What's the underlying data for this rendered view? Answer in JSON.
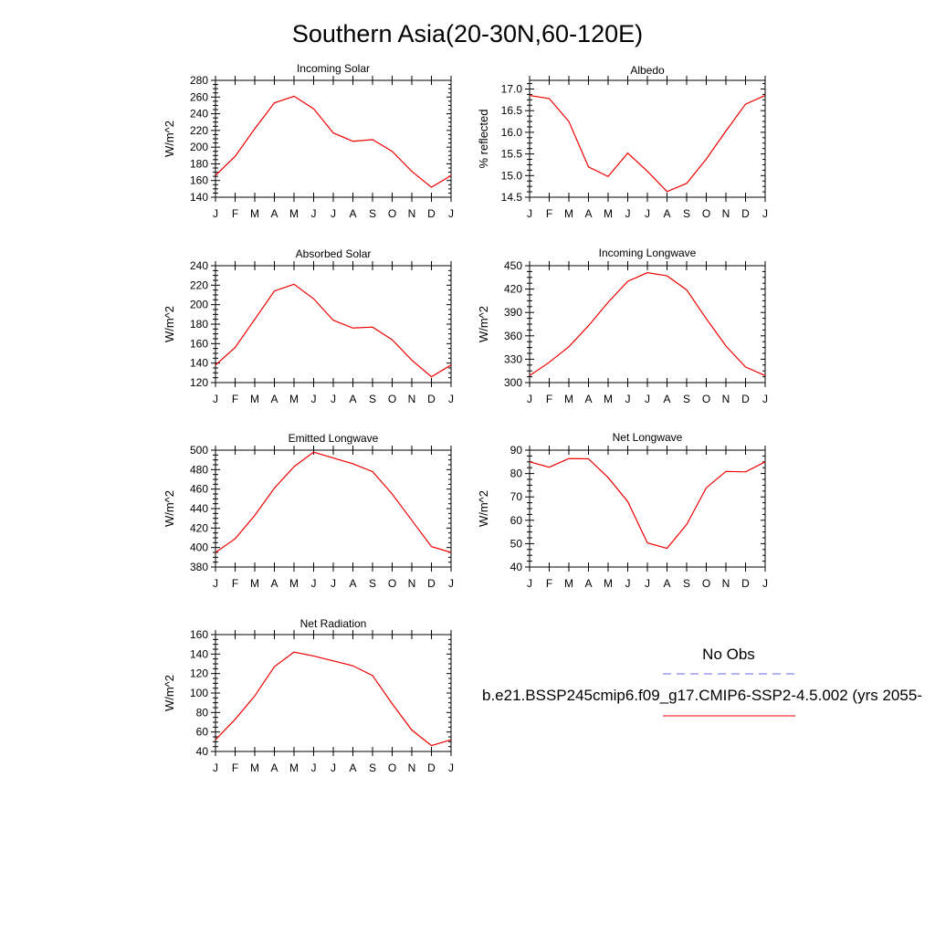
{
  "figure": {
    "title": "Southern Asia(20-30N,60-120E)"
  },
  "legend": {
    "obs_label": "No Obs",
    "obs_color": "#6a6aee",
    "model_label": "b.e21.BSSP245cmip6.f09_g17.CMIP6-SSP2-4.5.002 (yrs 2055-",
    "model_color": "#ee0000"
  },
  "chart_data": [
    {
      "type": "line",
      "title": "Incoming Solar",
      "ylabel": "W/m^2",
      "xlabel": "",
      "categories": [
        "J",
        "F",
        "M",
        "A",
        "M",
        "J",
        "J",
        "A",
        "S",
        "O",
        "N",
        "D",
        "J"
      ],
      "ylim": [
        140,
        280
      ],
      "yticks": [
        140,
        160,
        180,
        200,
        220,
        240,
        260,
        280
      ],
      "ytick_labels": [
        "140",
        "160",
        "180",
        "200",
        "220",
        "240",
        "260",
        "280"
      ],
      "series": [
        {
          "values": [
            166,
            189,
            222,
            253,
            261,
            246,
            217,
            207,
            209,
            195,
            171,
            152,
            166
          ]
        }
      ]
    },
    {
      "type": "line",
      "title": "Albedo",
      "ylabel": "% reflected",
      "xlabel": "",
      "categories": [
        "J",
        "F",
        "M",
        "A",
        "M",
        "J",
        "J",
        "A",
        "S",
        "O",
        "N",
        "D",
        "J"
      ],
      "ylim": [
        14.5,
        17.2
      ],
      "yticks": [
        14.5,
        15.0,
        15.5,
        16.0,
        16.5,
        17.0
      ],
      "ytick_labels": [
        "14.5",
        "15.0",
        "15.5",
        "16.0",
        "16.5",
        "17.0"
      ],
      "series": [
        {
          "values": [
            16.85,
            16.78,
            16.25,
            15.2,
            14.98,
            15.52,
            15.1,
            14.63,
            14.82,
            15.38,
            16.03,
            16.65,
            16.85
          ]
        }
      ]
    },
    {
      "type": "line",
      "title": "Absorbed Solar",
      "ylabel": "W/m^2",
      "xlabel": "",
      "categories": [
        "J",
        "F",
        "M",
        "A",
        "M",
        "J",
        "J",
        "A",
        "S",
        "O",
        "N",
        "D",
        "J"
      ],
      "ylim": [
        120,
        240
      ],
      "yticks": [
        120,
        140,
        160,
        180,
        200,
        220,
        240
      ],
      "ytick_labels": [
        "120",
        "140",
        "160",
        "180",
        "200",
        "220",
        "240"
      ],
      "series": [
        {
          "values": [
            138,
            156,
            185,
            214,
            221,
            206,
            184,
            176,
            177,
            164,
            143,
            126,
            138
          ]
        }
      ]
    },
    {
      "type": "line",
      "title": "Incoming Longwave",
      "ylabel": "W/m^2",
      "xlabel": "",
      "categories": [
        "J",
        "F",
        "M",
        "A",
        "M",
        "J",
        "J",
        "A",
        "S",
        "O",
        "N",
        "D",
        "J"
      ],
      "ylim": [
        300,
        450
      ],
      "yticks": [
        300,
        330,
        360,
        390,
        420,
        450
      ],
      "ytick_labels": [
        "300",
        "330",
        "360",
        "390",
        "420",
        "450"
      ],
      "series": [
        {
          "values": [
            309,
            326,
            346,
            373,
            403,
            430,
            441,
            437,
            419,
            382,
            347,
            320,
            309
          ]
        }
      ]
    },
    {
      "type": "line",
      "title": "Emitted Longwave",
      "ylabel": "W/m^2",
      "xlabel": "",
      "categories": [
        "J",
        "F",
        "M",
        "A",
        "M",
        "J",
        "J",
        "A",
        "S",
        "O",
        "N",
        "D",
        "J"
      ],
      "ylim": [
        380,
        500
      ],
      "yticks": [
        380,
        400,
        420,
        440,
        460,
        480,
        500
      ],
      "ytick_labels": [
        "380",
        "400",
        "420",
        "440",
        "460",
        "480",
        "500"
      ],
      "series": [
        {
          "values": [
            395,
            409,
            433,
            461,
            483,
            498,
            492,
            486,
            478,
            455,
            428,
            401,
            395
          ]
        }
      ]
    },
    {
      "type": "line",
      "title": "Net Longwave",
      "ylabel": "W/m^2",
      "xlabel": "",
      "categories": [
        "J",
        "F",
        "M",
        "A",
        "M",
        "J",
        "J",
        "A",
        "S",
        "O",
        "N",
        "D",
        "J"
      ],
      "ylim": [
        40,
        90
      ],
      "yticks": [
        40,
        50,
        60,
        70,
        80,
        90
      ],
      "ytick_labels": [
        "40",
        "50",
        "60",
        "70",
        "80",
        "90"
      ],
      "series": [
        {
          "values": [
            85,
            82.7,
            86.4,
            86.3,
            78.3,
            68,
            50.3,
            48,
            58.2,
            73.9,
            80.9,
            80.7,
            85
          ]
        }
      ]
    },
    {
      "type": "line",
      "title": "Net Radiation",
      "ylabel": "W/m^2",
      "xlabel": "",
      "categories": [
        "J",
        "F",
        "M",
        "A",
        "M",
        "J",
        "J",
        "A",
        "S",
        "O",
        "N",
        "D",
        "J"
      ],
      "ylim": [
        40,
        160
      ],
      "yticks": [
        40,
        60,
        80,
        100,
        120,
        140,
        160
      ],
      "ytick_labels": [
        "40",
        "60",
        "80",
        "100",
        "120",
        "140",
        "160"
      ],
      "series": [
        {
          "values": [
            52,
            73,
            97,
            127,
            142,
            138,
            133,
            128,
            118,
            89,
            62,
            46,
            52
          ]
        }
      ]
    }
  ]
}
